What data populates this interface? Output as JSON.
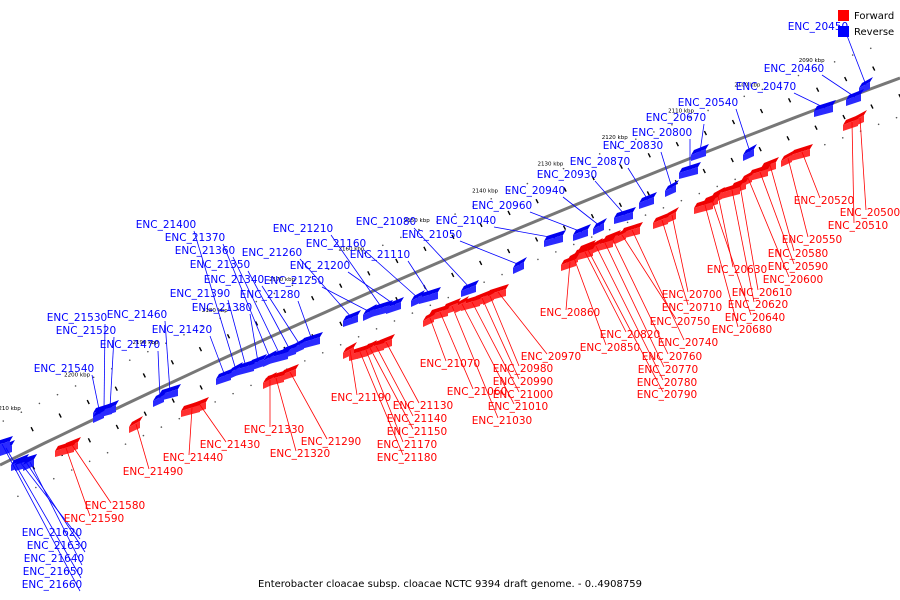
{
  "legend": {
    "forward_label": "Forward",
    "reverse_label": "Reverse",
    "forward_color": "#ff0000",
    "reverse_color": "#0000ff"
  },
  "caption": "Enterobacter cloacae subsp. cloacae NCTC 9394 draft genome. - 0..4908759",
  "axis": {
    "ticks": [
      "2090 kbp",
      "2100 kbp",
      "2110 kbp",
      "2120 kbp",
      "2130 kbp",
      "2140 kbp",
      "2150 kbp",
      "2160 kbp",
      "2170 kbp",
      "2180 kbp",
      "2190 kbp",
      "2200 kbp",
      "2210 kbp"
    ]
  },
  "reverse_genes": [
    "ENC_20450",
    "ENC_20460",
    "ENC_20470",
    "ENC_20540",
    "ENC_20670",
    "ENC_20800",
    "ENC_20830",
    "ENC_20870",
    "ENC_20930",
    "ENC_20940",
    "ENC_20960",
    "ENC_21040",
    "ENC_21050",
    "ENC_21080",
    "ENC_21110",
    "ENC_21160",
    "ENC_21200",
    "ENC_21210",
    "ENC_21250",
    "ENC_21260",
    "ENC_21280",
    "ENC_21340",
    "ENC_21350",
    "ENC_21360",
    "ENC_21370",
    "ENC_21380",
    "ENC_21390",
    "ENC_21400",
    "ENC_21420",
    "ENC_21460",
    "ENC_21470",
    "ENC_21520",
    "ENC_21530",
    "ENC_21540",
    "ENC_21620",
    "ENC_21630",
    "ENC_21640",
    "ENC_21650",
    "ENC_21660"
  ],
  "forward_genes": [
    "ENC_20500",
    "ENC_20510",
    "ENC_20520",
    "ENC_20550",
    "ENC_20580",
    "ENC_20590",
    "ENC_20600",
    "ENC_20610",
    "ENC_20620",
    "ENC_20630",
    "ENC_20640",
    "ENC_20680",
    "ENC_20700",
    "ENC_20710",
    "ENC_20740",
    "ENC_20750",
    "ENC_20760",
    "ENC_20770",
    "ENC_20780",
    "ENC_20790",
    "ENC_20820",
    "ENC_20850",
    "ENC_20860",
    "ENC_20970",
    "ENC_20980",
    "ENC_20990",
    "ENC_21000",
    "ENC_21010",
    "ENC_21030",
    "ENC_21060",
    "ENC_21070",
    "ENC_21130",
    "ENC_21140",
    "ENC_21150",
    "ENC_21170",
    "ENC_21180",
    "ENC_21190",
    "ENC_21290",
    "ENC_21320",
    "ENC_21330",
    "ENC_21430",
    "ENC_21440",
    "ENC_21490",
    "ENC_21580",
    "ENC_21590"
  ]
}
